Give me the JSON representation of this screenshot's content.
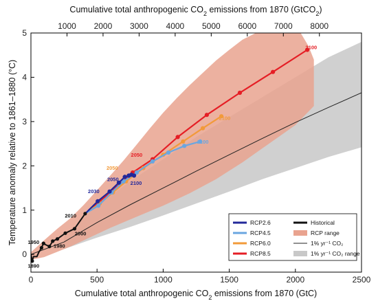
{
  "chart_data": {
    "type": "line",
    "xlabel": "Cumulative total anthropogenic CO2 emissions from 1870 (GtC)",
    "x2label": "Cumulative total anthropogenic CO2 emissions from 1870 (GtCO2)",
    "ylabel": "Temperature anomaly relative to 1861–1880 (°C)",
    "xlim": [
      0,
      2500
    ],
    "ylim": [
      -0.4,
      5
    ],
    "x2lim_equiv_gtc_factor": 3.667,
    "x_ticks": [
      0,
      500,
      1000,
      1500,
      2000,
      2500
    ],
    "x2_ticks": [
      1000,
      2000,
      3000,
      4000,
      5000,
      6000,
      7000,
      8000
    ],
    "y_ticks": [
      0,
      1,
      2,
      3,
      4,
      5
    ],
    "grid": false,
    "legend_position": "bottom-right",
    "colors": {
      "historical": "#111111",
      "rcp26": "#22289a",
      "rcp45": "#6aa6e0",
      "rcp60": "#f29a3a",
      "rcp85": "#e51e25",
      "rcp_range": "#e9a38f",
      "onepct_range": "#c8c8c8",
      "onepct": "#222222"
    },
    "legend": [
      {
        "key": "rcp26",
        "label": "RCP2.6",
        "kind": "line"
      },
      {
        "key": "historical",
        "label": "Historical",
        "kind": "line"
      },
      {
        "key": "rcp45",
        "label": "RCP4.5",
        "kind": "line"
      },
      {
        "key": "rcp_range",
        "label": "RCP range",
        "kind": "patch"
      },
      {
        "key": "rcp60",
        "label": "RCP6.0",
        "kind": "line"
      },
      {
        "key": "onepct",
        "label": "1% yr⁻¹ CO₂",
        "kind": "thin"
      },
      {
        "key": "rcp85",
        "label": "RCP8.5",
        "kind": "line"
      },
      {
        "key": "onepct_range",
        "label": "1% yr⁻¹ CO₂ range",
        "kind": "patch"
      }
    ],
    "ranges": {
      "onepct_range": {
        "upper": [
          [
            250,
            0.42
          ],
          [
            500,
            1.1
          ],
          [
            750,
            1.65
          ],
          [
            1000,
            2.15
          ],
          [
            1250,
            2.65
          ],
          [
            1500,
            3.1
          ],
          [
            1750,
            3.55
          ],
          [
            2000,
            4.0
          ],
          [
            2250,
            4.45
          ],
          [
            2500,
            4.8
          ]
        ],
        "lower": [
          [
            250,
            0.12
          ],
          [
            500,
            0.38
          ],
          [
            750,
            0.62
          ],
          [
            1000,
            0.88
          ],
          [
            1250,
            1.15
          ],
          [
            1500,
            1.42
          ],
          [
            1750,
            1.7
          ],
          [
            2000,
            1.95
          ],
          [
            2250,
            2.2
          ],
          [
            2500,
            2.42
          ]
        ]
      },
      "rcp_range": {
        "upper": [
          [
            0,
            0.05
          ],
          [
            100,
            0.32
          ],
          [
            200,
            0.58
          ],
          [
            300,
            0.82
          ],
          [
            400,
            1.12
          ],
          [
            500,
            1.45
          ],
          [
            600,
            1.78
          ],
          [
            700,
            2.12
          ],
          [
            800,
            2.48
          ],
          [
            900,
            2.85
          ],
          [
            1000,
            3.2
          ],
          [
            1100,
            3.52
          ],
          [
            1200,
            3.82
          ],
          [
            1300,
            4.1
          ],
          [
            1400,
            4.38
          ],
          [
            1500,
            4.62
          ],
          [
            1600,
            4.85
          ],
          [
            1700,
            5.0
          ],
          [
            2040,
            5.0
          ],
          [
            2100,
            4.7
          ],
          [
            2140,
            4.4
          ]
        ],
        "lower": [
          [
            2140,
            3.35
          ],
          [
            2000,
            2.92
          ],
          [
            1800,
            2.5
          ],
          [
            1600,
            2.08
          ],
          [
            1400,
            1.7
          ],
          [
            1200,
            1.38
          ],
          [
            1000,
            1.1
          ],
          [
            800,
            0.85
          ],
          [
            600,
            0.6
          ],
          [
            400,
            0.32
          ],
          [
            300,
            0.18
          ],
          [
            200,
            0.06
          ],
          [
            100,
            -0.06
          ],
          [
            0,
            -0.12
          ]
        ]
      }
    },
    "onepct_line": {
      "x": [
        0,
        250,
        500,
        750,
        1000,
        1250,
        1500,
        1750,
        2000,
        2250,
        2500
      ],
      "y": [
        0,
        0.28,
        0.72,
        1.12,
        1.5,
        1.88,
        2.25,
        2.62,
        2.98,
        3.32,
        3.65
      ]
    },
    "series": [
      {
        "key": "historical",
        "name": "Historical",
        "x": [
          0,
          10,
          20,
          45,
          60,
          80,
          95,
          110,
          140,
          165,
          200,
          260,
          330,
          410
        ],
        "y": [
          0,
          -0.15,
          -0.05,
          -0.05,
          0.05,
          0.15,
          0.25,
          0.22,
          0.18,
          0.3,
          0.35,
          0.48,
          0.58,
          0.92
        ],
        "marker_idx": [
          1,
          5,
          6,
          8,
          9,
          10,
          11,
          12,
          13
        ]
      },
      {
        "key": "rcp26",
        "name": "RCP2.6",
        "x": [
          410,
          505,
          595,
          665,
          710,
          740,
          760,
          780
        ],
        "y": [
          0.92,
          1.2,
          1.42,
          1.62,
          1.75,
          1.78,
          1.8,
          1.78
        ],
        "marker_idx": [
          1,
          2,
          3,
          4,
          5,
          6,
          7
        ]
      },
      {
        "key": "rcp45",
        "name": "RCP4.5",
        "x": [
          410,
          510,
          610,
          700,
          800,
          920,
          1040,
          1160,
          1280
        ],
        "y": [
          0.92,
          1.1,
          1.4,
          1.65,
          1.85,
          2.1,
          2.3,
          2.45,
          2.55
        ],
        "marker_idx": [
          1,
          2,
          3,
          4,
          5,
          6,
          7,
          8
        ]
      },
      {
        "key": "rcp60",
        "name": "RCP6.0",
        "x": [
          410,
          520,
          620,
          720,
          850,
          1000,
          1150,
          1300,
          1440
        ],
        "y": [
          0.92,
          1.15,
          1.4,
          1.65,
          1.95,
          2.25,
          2.55,
          2.85,
          3.12
        ],
        "marker_idx": [
          1,
          2,
          3,
          4,
          5,
          6,
          7,
          8
        ]
      },
      {
        "key": "rcp85",
        "name": "RCP8.5",
        "x": [
          410,
          520,
          640,
          770,
          920,
          1110,
          1330,
          1580,
          1830,
          2090
        ],
        "y": [
          0.92,
          1.2,
          1.5,
          1.85,
          2.15,
          2.65,
          3.15,
          3.65,
          4.12,
          4.62
        ],
        "marker_idx": [
          1,
          2,
          3,
          4,
          5,
          6,
          7,
          8,
          9
        ]
      }
    ],
    "year_labels": [
      {
        "text": "1890",
        "x": 20,
        "y": -0.25,
        "color": "#111111"
      },
      {
        "text": "1950",
        "x": 20,
        "y": 0.28,
        "color": "#111111"
      },
      {
        "text": "1980",
        "x": 215,
        "y": 0.2,
        "color": "#111111"
      },
      {
        "text": "2000",
        "x": 375,
        "y": 0.48,
        "color": "#111111"
      },
      {
        "text": "2010",
        "x": 300,
        "y": 0.88,
        "color": "#111111"
      },
      {
        "text": "2030",
        "x": 475,
        "y": 1.43,
        "color": "#22289a"
      },
      {
        "text": "2050",
        "x": 620,
        "y": 1.7,
        "color": "#22289a"
      },
      {
        "text": "2100",
        "x": 795,
        "y": 1.62,
        "color": "#22289a"
      },
      {
        "text": "2050",
        "x": 615,
        "y": 1.96,
        "color": "#f29a3a"
      },
      {
        "text": "2050",
        "x": 800,
        "y": 2.25,
        "color": "#e51e25"
      },
      {
        "text": "2100",
        "x": 1300,
        "y": 2.55,
        "color": "#6aa6e0"
      },
      {
        "text": "2100",
        "x": 1465,
        "y": 3.08,
        "color": "#f29a3a"
      },
      {
        "text": "2100",
        "x": 2120,
        "y": 4.68,
        "color": "#e51e25"
      }
    ]
  }
}
